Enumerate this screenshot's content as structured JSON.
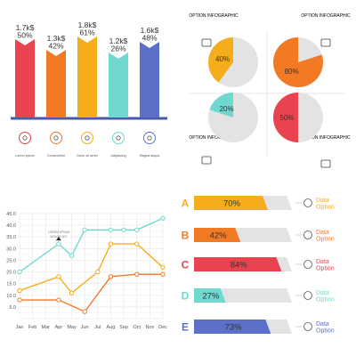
{
  "colors": {
    "red": "#e8434e",
    "orange": "#f37a25",
    "yellow": "#f5ad1c",
    "teal": "#6fd9cf",
    "blue": "#5b70c7",
    "gray": "#e3e3e3",
    "axis": "#4a5aa8",
    "grid": "#e6e6e6",
    "text": "#555555"
  },
  "chart_data": [
    {
      "type": "bar",
      "categories": [
        "Lorem ipsum",
        "Consectetur",
        "Dolor sit amet",
        "Adipiscing",
        "Magna aliqua"
      ],
      "values": [
        1.7,
        1.3,
        1.8,
        1.2,
        1.6
      ],
      "value_labels": [
        "1.7k$",
        "1.3k$",
        "1.8k$",
        "1.2k$",
        "1.6k$"
      ],
      "percent_labels": [
        "50%",
        "42%",
        "61%",
        "26%",
        "48%"
      ],
      "colors": [
        "#e8434e",
        "#f37a25",
        "#f5ad1c",
        "#6fd9cf",
        "#5b70c7"
      ],
      "icons": [
        "award-icon",
        "graduation-cap-icon",
        "lightbulb-icon",
        "globe-icon",
        "clock-icon"
      ],
      "ylim": [
        0,
        2
      ]
    },
    {
      "type": "pie",
      "titles": [
        "OPTION INFOGRAPHIC",
        "OPTION INFOGRAPHIC",
        "OPTION INFOGRAPHIC",
        "OPTION INFOGRAPHIC"
      ],
      "slices": [
        {
          "label": "40%",
          "value": 40,
          "color": "#f5ad1c",
          "icon": "gears-icon"
        },
        {
          "label": "80%",
          "value": 80,
          "color": "#f37a25",
          "icon": "briefcase-icon"
        },
        {
          "label": "20%",
          "value": 20,
          "color": "#6fd9cf",
          "icon": "money-growth-icon"
        },
        {
          "label": "50%",
          "value": 50,
          "color": "#e8434e",
          "icon": "banknote-icon"
        }
      ]
    },
    {
      "type": "line",
      "x": [
        "Jan",
        "Feb",
        "Mar",
        "Apr",
        "May",
        "Jun",
        "Jul",
        "Aug",
        "Sep",
        "Oct",
        "Nov",
        "Dec"
      ],
      "yticks": [
        "0",
        "5.0",
        "10.0",
        "15.0",
        "20.0",
        "25.0",
        "30.0",
        "35.0",
        "40.0",
        "45.0"
      ],
      "ylim": [
        0,
        45
      ],
      "grid": true,
      "annotation": {
        "x": "Apr",
        "lines": [
          "LOREM IPSUM",
          "DOLOR SIT"
        ]
      },
      "series": [
        {
          "color": "#6fd9cf",
          "points": [
            {
              "x": 0,
              "y": 20
            },
            {
              "x": 3,
              "y": 32
            },
            {
              "x": 4,
              "y": 27
            },
            {
              "x": 5,
              "y": 38
            },
            {
              "x": 7,
              "y": 38
            },
            {
              "x": 8,
              "y": 38
            },
            {
              "x": 9,
              "y": 38
            },
            {
              "x": 11,
              "y": 43
            }
          ]
        },
        {
          "color": "#f5ad1c",
          "points": [
            {
              "x": 0,
              "y": 12
            },
            {
              "x": 3,
              "y": 18
            },
            {
              "x": 4,
              "y": 11
            },
            {
              "x": 6,
              "y": 20
            },
            {
              "x": 7,
              "y": 32
            },
            {
              "x": 9,
              "y": 32
            },
            {
              "x": 11,
              "y": 22
            }
          ]
        },
        {
          "color": "#f37a25",
          "points": [
            {
              "x": 0,
              "y": 8
            },
            {
              "x": 3,
              "y": 8
            },
            {
              "x": 5,
              "y": 3
            },
            {
              "x": 7,
              "y": 18
            },
            {
              "x": 9,
              "y": 19
            },
            {
              "x": 11,
              "y": 19
            }
          ]
        }
      ]
    },
    {
      "type": "bar",
      "orientation": "horizontal",
      "categories": [
        "A",
        "B",
        "C",
        "D",
        "E"
      ],
      "values": [
        70,
        42,
        84,
        27,
        73
      ],
      "labels": [
        "70%",
        "42%",
        "84%",
        "27%",
        "73%"
      ],
      "colors": [
        "#f5ad1c",
        "#f37a25",
        "#e8434e",
        "#6fd9cf",
        "#5b70c7"
      ],
      "icons": [
        "head-gear-icon",
        "chart-icon",
        "trend-line-icon",
        "presentation-icon",
        "magnifier-icon"
      ],
      "option_title": "Data",
      "option_sub": "Option",
      "xlim": [
        0,
        100
      ]
    }
  ]
}
